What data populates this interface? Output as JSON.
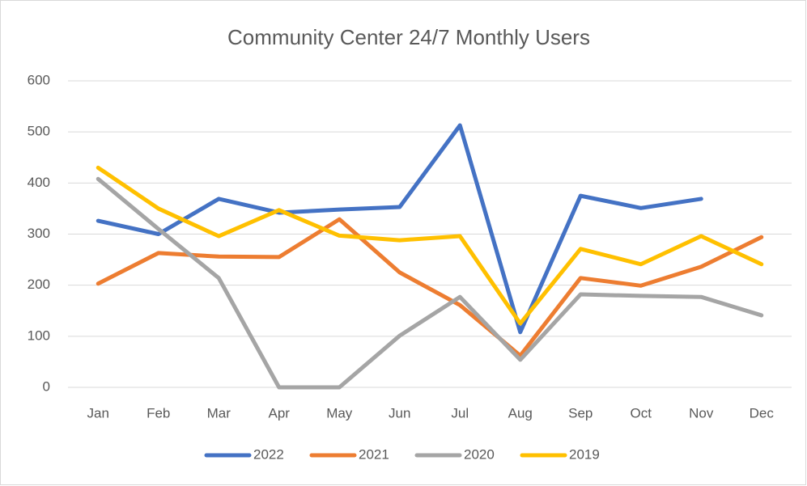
{
  "chart_data": {
    "type": "line",
    "title": "Community Center 24/7 Monthly Users",
    "categories": [
      "Jan",
      "Feb",
      "Mar",
      "Apr",
      "May",
      "Jun",
      "Jul",
      "Aug",
      "Sep",
      "Oct",
      "Nov",
      "Dec"
    ],
    "series": [
      {
        "name": "2022",
        "color": "#4472c4",
        "values": [
          326,
          300,
          369,
          342,
          348,
          353,
          513,
          108,
          375,
          351,
          369,
          null
        ]
      },
      {
        "name": "2021",
        "color": "#ed7d31",
        "values": [
          203,
          263,
          256,
          255,
          329,
          225,
          161,
          62,
          214,
          199,
          236,
          294
        ]
      },
      {
        "name": "2020",
        "color": "#a5a5a5",
        "values": [
          408,
          310,
          214,
          0,
          0,
          101,
          177,
          54,
          182,
          179,
          177,
          141
        ]
      },
      {
        "name": "2019",
        "color": "#ffc000",
        "values": [
          430,
          350,
          296,
          347,
          297,
          288,
          296,
          125,
          271,
          241,
          296,
          241
        ]
      }
    ],
    "ylim": [
      0,
      600
    ],
    "yticks": [
      0,
      100,
      200,
      300,
      400,
      500,
      600
    ],
    "grid": true,
    "legend": "bottom"
  }
}
